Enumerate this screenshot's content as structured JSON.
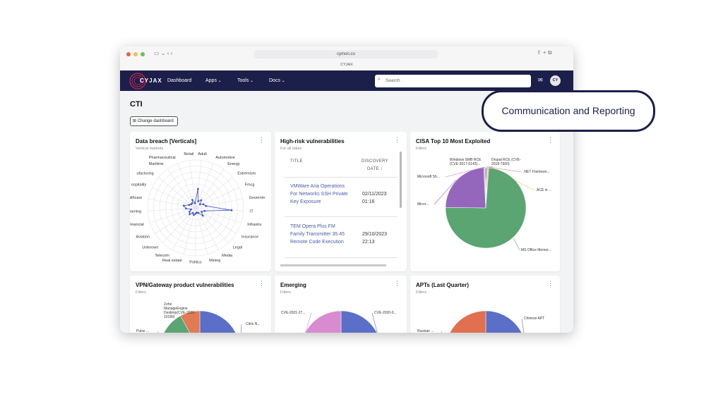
{
  "browser": {
    "url": "cymon.co",
    "tab_title": "CYJAX"
  },
  "nav": {
    "logo": "CYJAX",
    "items": [
      "Dashboard",
      "Apps",
      "Tools",
      "Docs"
    ],
    "search_placeholder": "Search",
    "avatar": "CY"
  },
  "page": {
    "title": "CTI",
    "button": "Change dashboard"
  },
  "callout": "Communication and Reporting",
  "vulnerabilities_table": {
    "title": "High-risk vulnerabilities",
    "subtitle": "For all dates",
    "columns": [
      "TITLE",
      "DISCOVERY DATE ↓"
    ],
    "rows": [
      [
        "VMWare Aria Operations For Networks SSH Private Key Exposure",
        "02/11/2023 01:16"
      ],
      [
        "TEM Opera Plus FM Family Transmitter 35.45 Remote Code Execution",
        "29/10/2023 22:13"
      ]
    ]
  },
  "chart_data": [
    {
      "type": "radar",
      "title": "Data breach [Verticals]",
      "subtitle": "Vertical markets",
      "categories": [
        "Adult",
        "Automotive",
        "Energy",
        "Extremism",
        "Fmcg",
        "Governm",
        "IT",
        "Infrastru",
        "Insurance",
        "Legal",
        "Media",
        "Mining",
        "Politics",
        "Real estate",
        "Telecom",
        "Unknown",
        "Aviation",
        "Financial",
        "Gaming",
        "althcare",
        "ospitality",
        "ufacturing",
        "Maritime",
        "Pharmaceutical",
        "Retail"
      ],
      "values": [
        40,
        15,
        20,
        12,
        18,
        22,
        75,
        20,
        15,
        22,
        12,
        10,
        12,
        15,
        12,
        18,
        15,
        10,
        20,
        25,
        15,
        12,
        12,
        18,
        10
      ],
      "rlim": [
        0,
        100
      ],
      "color": "#4a5cc4"
    },
    {
      "type": "pie",
      "title": "CISA Top 10 Most Exploited",
      "subtitle": "Filters",
      "categories": [
        "Drupal RCE (CVE-2018-7600)",
        ".NET Framewo...",
        "ACE in ...",
        "MS Office Memor...",
        "Micro...",
        "Microsoft Sh...",
        "Windows SMB RCE (CVE-2017-0143)..."
      ],
      "values": [
        0.4,
        0.4,
        0.4,
        74,
        24,
        0.4,
        0.4
      ],
      "colors": [
        "#4a5cc4",
        "#e07b54",
        "#f2c14e",
        "#5aa572",
        "#9467bd",
        "#d77fc5",
        "#7bb3e0"
      ]
    },
    {
      "type": "pie",
      "title": "VPN/Gateway product vulnerabilities",
      "subtitle": "Filters",
      "categories": [
        "Citrix N...",
        "Pulse ...",
        "Zoho ManageEngine Desktop(CVE-2020-10189)"
      ],
      "values": [
        50,
        42,
        8
      ],
      "colors": [
        "#5b6fc8",
        "#5aa572",
        "#e07b54"
      ]
    },
    {
      "type": "pie",
      "title": "Emerging",
      "subtitle": "Filters",
      "categories": [
        "CVE-2020-0...",
        "CVE-2021-27..."
      ],
      "values": [
        50,
        50
      ],
      "colors": [
        "#5b6fc8",
        "#d98bcf"
      ]
    },
    {
      "type": "pie",
      "title": "APTs (Last Quarter)",
      "subtitle": "Filters",
      "categories": [
        "Chinese APT",
        "Russian ..."
      ],
      "values": [
        50,
        50
      ],
      "colors": [
        "#5b6fc8",
        "#e0704f"
      ]
    }
  ]
}
